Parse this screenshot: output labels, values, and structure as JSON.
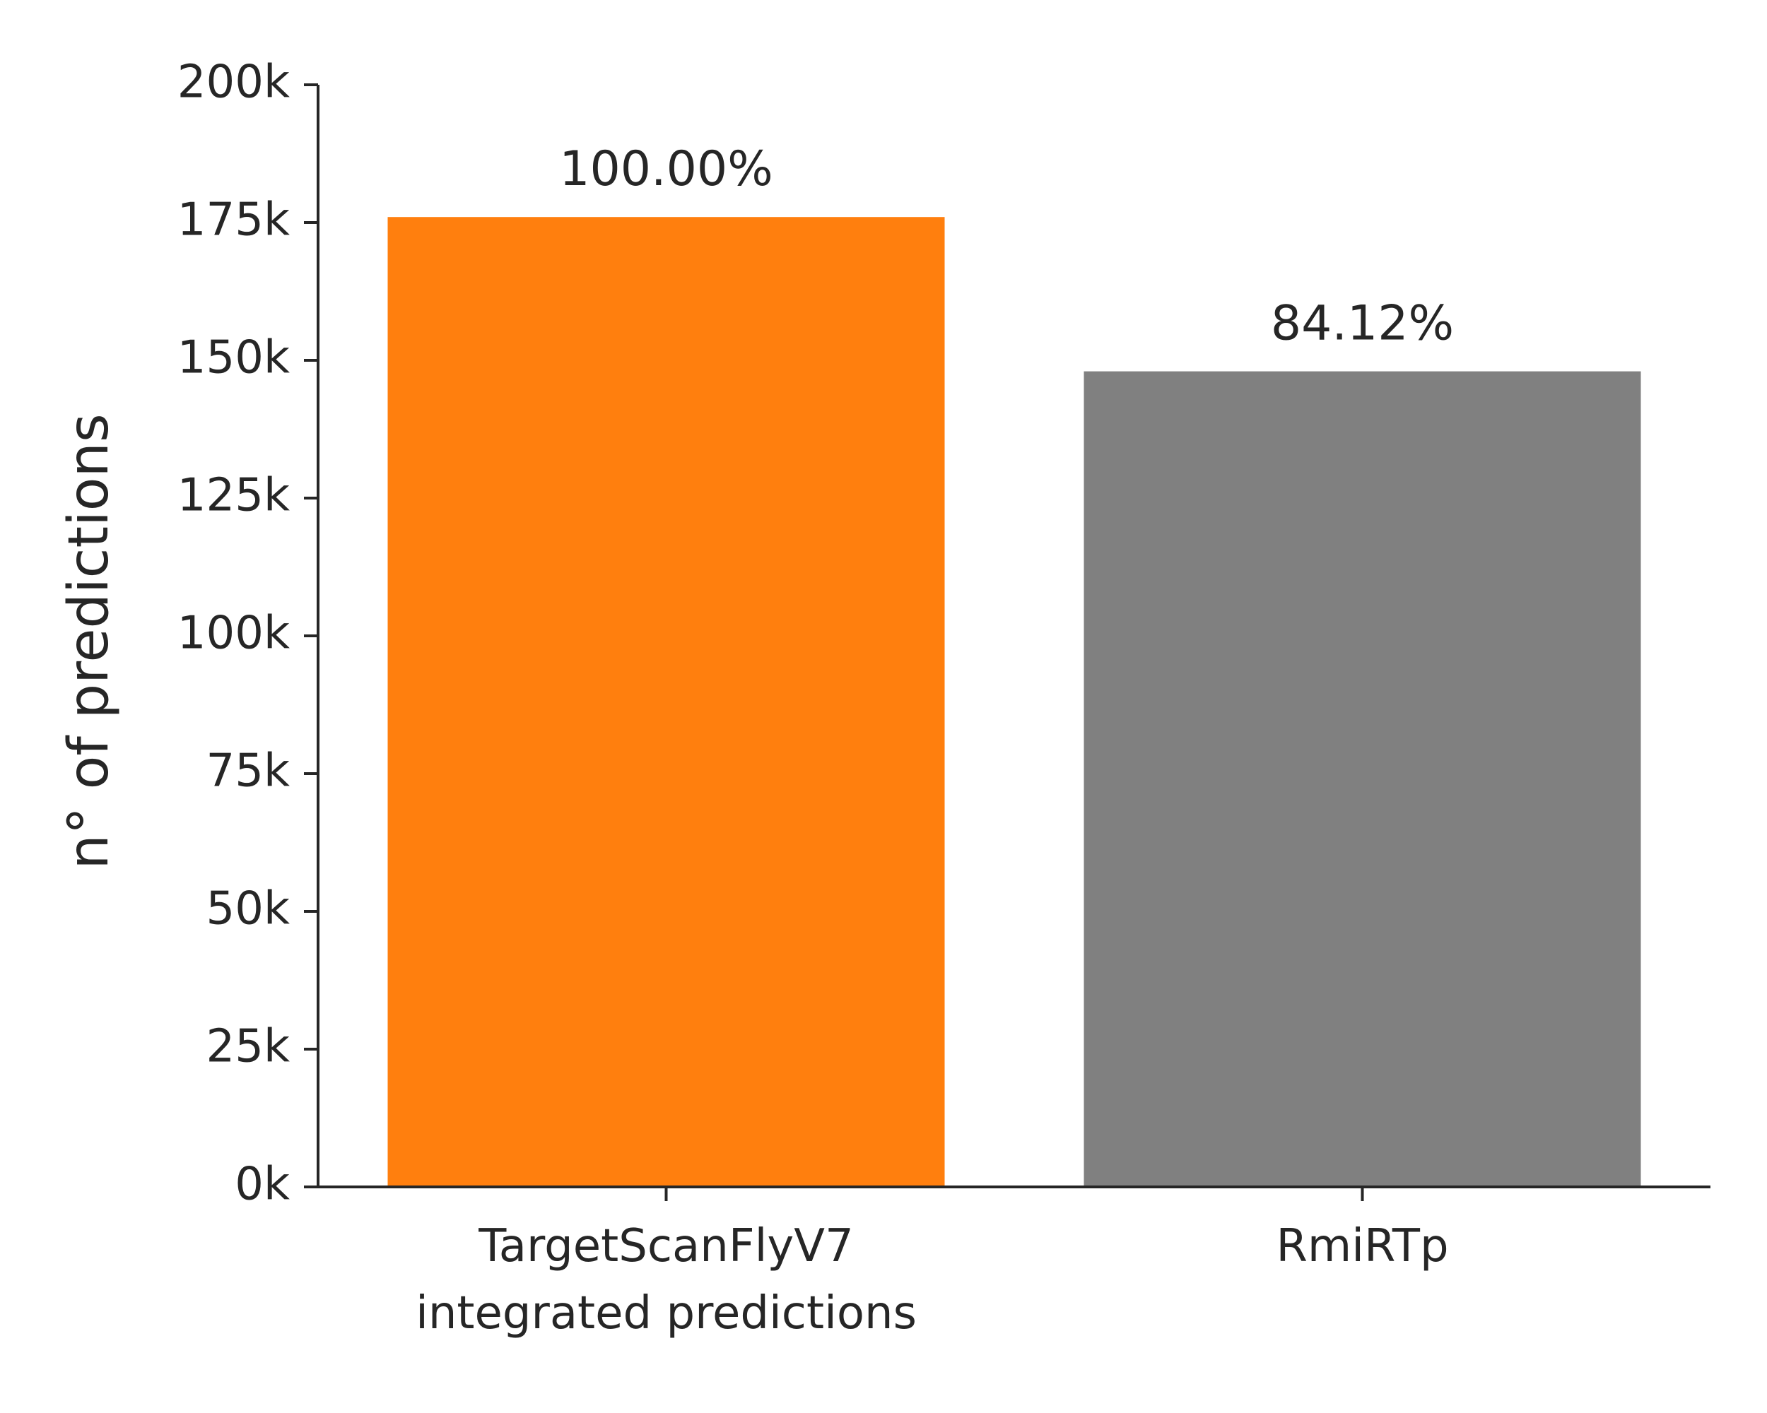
{
  "chart_data": {
    "type": "bar",
    "categories": [
      [
        "TargetScanFlyV7",
        "integrated predictions"
      ],
      [
        "RmiRTp"
      ]
    ],
    "values": [
      176000,
      148000
    ],
    "bar_labels": [
      "100.00%",
      "84.12%"
    ],
    "bar_colors": [
      "#ff7f0e",
      "#808080"
    ],
    "ylabel": "n° of predictions",
    "ylim": [
      0,
      200000
    ],
    "y_ticks": [
      0,
      25000,
      50000,
      75000,
      100000,
      125000,
      150000,
      175000,
      200000
    ],
    "y_tick_labels": [
      "0k",
      "25k",
      "50k",
      "75k",
      "100k",
      "125k",
      "150k",
      "175k",
      "200k"
    ],
    "grid": false,
    "legend": "none"
  }
}
